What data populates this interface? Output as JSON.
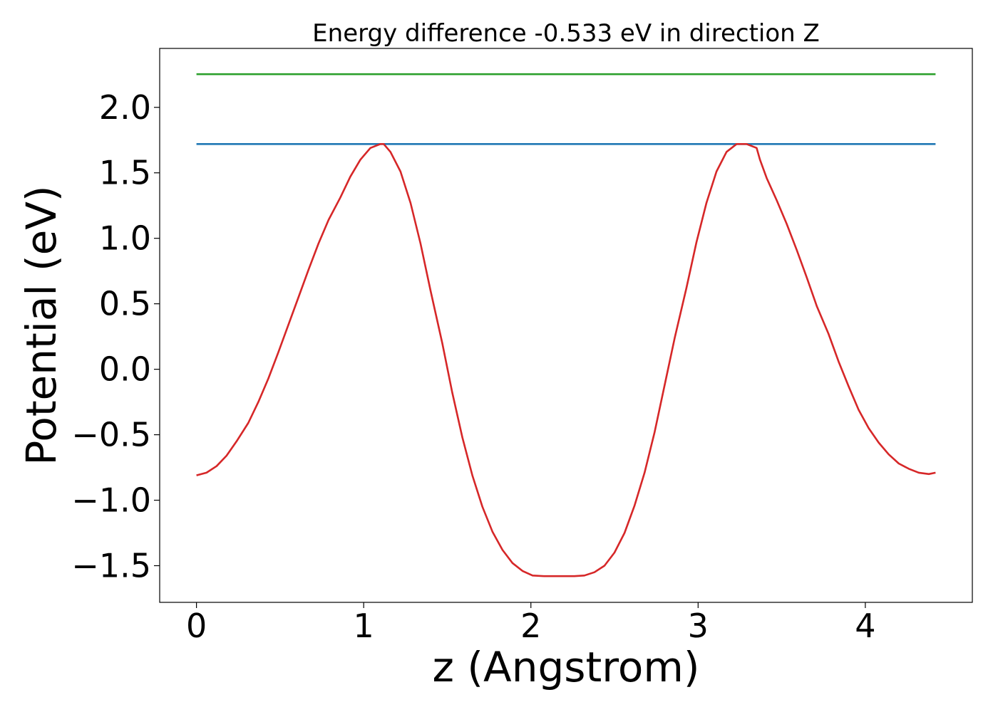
{
  "chart_data": {
    "type": "line",
    "title": "Energy difference -0.533 eV in direction Z",
    "xlabel": "z (Angstrom)",
    "ylabel": "Potential (eV)",
    "xlim": [
      -0.22,
      4.64
    ],
    "ylim": [
      -1.78,
      2.45
    ],
    "xticks": [
      0,
      1,
      2,
      3,
      4
    ],
    "xtick_labels": [
      "0",
      "1",
      "2",
      "3",
      "4"
    ],
    "yticks": [
      -1.5,
      -1.0,
      -0.5,
      0.0,
      0.5,
      1.0,
      1.5,
      2.0
    ],
    "ytick_labels": [
      "−1.5",
      "−1.0",
      "−0.5",
      "0.0",
      "0.5",
      "1.0",
      "1.5",
      "2.0"
    ],
    "grid": false,
    "legend": "none",
    "series": [
      {
        "color": "#2ca02c",
        "x": [
          0.0,
          4.42
        ],
        "y": [
          2.253,
          2.253
        ]
      },
      {
        "color": "#1f77b4",
        "x": [
          0.0,
          4.42
        ],
        "y": [
          1.72,
          1.72
        ]
      },
      {
        "color": "#d62728",
        "x": [
          0.0,
          0.06,
          0.12,
          0.18,
          0.24,
          0.31,
          0.37,
          0.43,
          0.49,
          0.55,
          0.61,
          0.67,
          0.73,
          0.79,
          0.86,
          0.92,
          0.98,
          1.04,
          1.1,
          1.12,
          1.16,
          1.22,
          1.28,
          1.34,
          1.4,
          1.47,
          1.53,
          1.59,
          1.65,
          1.71,
          1.77,
          1.83,
          1.89,
          1.95,
          2.01,
          2.08,
          2.14,
          2.2,
          2.26,
          2.32,
          2.38,
          2.44,
          2.5,
          2.56,
          2.62,
          2.68,
          2.74,
          2.8,
          2.86,
          2.93,
          2.99,
          3.05,
          3.11,
          3.17,
          3.23,
          3.29,
          3.35,
          3.37,
          3.41,
          3.47,
          3.53,
          3.59,
          3.65,
          3.71,
          3.78,
          3.84,
          3.9,
          3.96,
          4.02,
          4.08,
          4.14,
          4.2,
          4.26,
          4.32,
          4.38,
          4.42
        ],
        "y": [
          -0.81,
          -0.79,
          -0.74,
          -0.66,
          -0.55,
          -0.41,
          -0.25,
          -0.07,
          0.13,
          0.34,
          0.55,
          0.76,
          0.96,
          1.14,
          1.31,
          1.47,
          1.6,
          1.69,
          1.72,
          1.72,
          1.66,
          1.51,
          1.27,
          0.96,
          0.6,
          0.2,
          -0.18,
          -0.52,
          -0.81,
          -1.05,
          -1.24,
          -1.38,
          -1.48,
          -1.54,
          -1.575,
          -1.58,
          -1.58,
          -1.58,
          -1.58,
          -1.575,
          -1.55,
          -1.5,
          -1.4,
          -1.25,
          -1.04,
          -0.79,
          -0.48,
          -0.12,
          0.24,
          0.62,
          0.97,
          1.27,
          1.51,
          1.66,
          1.72,
          1.72,
          1.69,
          1.6,
          1.46,
          1.29,
          1.11,
          0.91,
          0.7,
          0.48,
          0.27,
          0.06,
          -0.13,
          -0.31,
          -0.45,
          -0.56,
          -0.65,
          -0.72,
          -0.76,
          -0.79,
          -0.8,
          -0.79
        ]
      }
    ]
  }
}
